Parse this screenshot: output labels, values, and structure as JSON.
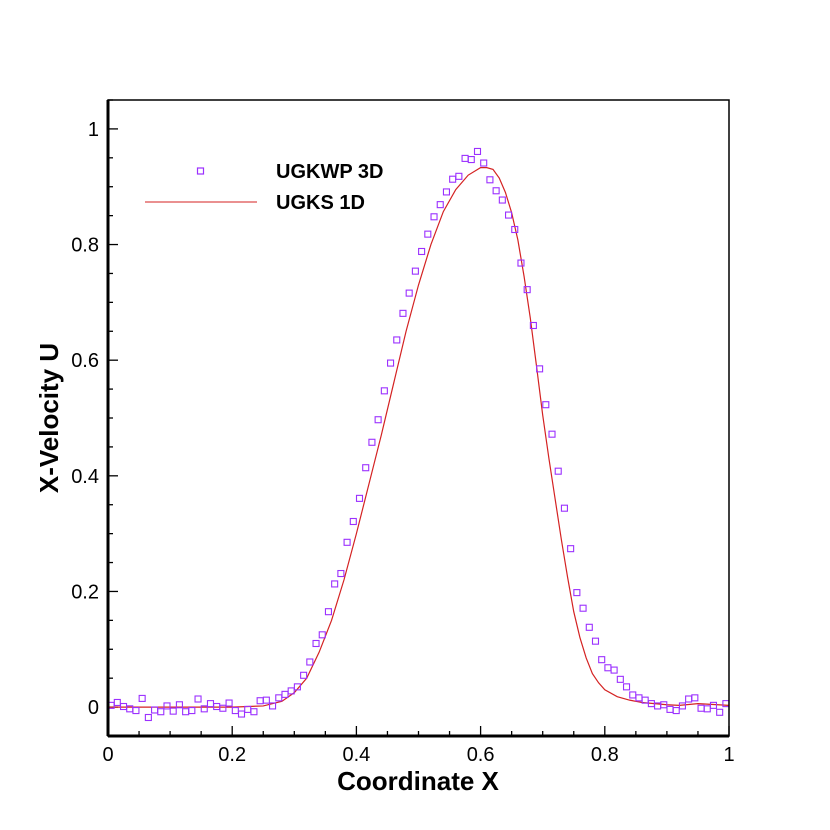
{
  "chart_data": {
    "type": "scatter",
    "xlabel": "Coordinate X",
    "ylabel": "X-Velocity U",
    "xlim": [
      0,
      1
    ],
    "ylim": [
      -0.05,
      1.05
    ],
    "xticks": [
      "0",
      "0.2",
      "0.4",
      "0.6",
      "0.8",
      "1"
    ],
    "yticks": [
      "0",
      "0.2",
      "0.4",
      "0.6",
      "0.8",
      "1"
    ],
    "grid": false,
    "legend": "top-left",
    "series": [
      {
        "name": "UGKWP 3D",
        "kind": "markers",
        "marker": "square",
        "color": "#9B30FF",
        "x": [
          0.005,
          0.015,
          0.025,
          0.035,
          0.045,
          0.055,
          0.065,
          0.075,
          0.085,
          0.095,
          0.105,
          0.115,
          0.125,
          0.135,
          0.145,
          0.155,
          0.165,
          0.175,
          0.185,
          0.195,
          0.205,
          0.215,
          0.225,
          0.235,
          0.245,
          0.255,
          0.265,
          0.275,
          0.285,
          0.295,
          0.305,
          0.315,
          0.325,
          0.335,
          0.345,
          0.355,
          0.365,
          0.375,
          0.385,
          0.395,
          0.405,
          0.415,
          0.425,
          0.435,
          0.445,
          0.455,
          0.465,
          0.475,
          0.485,
          0.495,
          0.505,
          0.515,
          0.525,
          0.535,
          0.545,
          0.555,
          0.565,
          0.575,
          0.585,
          0.595,
          0.605,
          0.615,
          0.625,
          0.635,
          0.645,
          0.655,
          0.665,
          0.675,
          0.685,
          0.695,
          0.705,
          0.715,
          0.725,
          0.735,
          0.745,
          0.755,
          0.765,
          0.775,
          0.785,
          0.795,
          0.805,
          0.815,
          0.825,
          0.835,
          0.845,
          0.855,
          0.865,
          0.875,
          0.885,
          0.895,
          0.905,
          0.915,
          0.925,
          0.935,
          0.945,
          0.955,
          0.965,
          0.975,
          0.985,
          0.995
        ],
        "y": [
          0.003,
          0.008,
          0.001,
          -0.003,
          -0.006,
          0.015,
          -0.018,
          -0.005,
          -0.008,
          0.002,
          -0.007,
          0.004,
          -0.008,
          -0.006,
          0.014,
          -0.003,
          0.006,
          0.001,
          -0.002,
          0.007,
          -0.006,
          -0.012,
          -0.004,
          -0.008,
          0.011,
          0.012,
          0.002,
          0.016,
          0.022,
          0.028,
          0.035,
          0.055,
          0.078,
          0.11,
          0.125,
          0.165,
          0.213,
          0.231,
          0.285,
          0.321,
          0.361,
          0.414,
          0.458,
          0.497,
          0.547,
          0.595,
          0.635,
          0.681,
          0.716,
          0.754,
          0.788,
          0.818,
          0.848,
          0.869,
          0.891,
          0.913,
          0.918,
          0.949,
          0.947,
          0.961,
          0.941,
          0.912,
          0.893,
          0.877,
          0.851,
          0.826,
          0.768,
          0.722,
          0.66,
          0.585,
          0.523,
          0.472,
          0.408,
          0.344,
          0.274,
          0.198,
          0.171,
          0.138,
          0.114,
          0.082,
          0.068,
          0.064,
          0.048,
          0.035,
          0.021,
          0.016,
          0.012,
          0.006,
          0.002,
          0.004,
          -0.004,
          -0.006,
          0.002,
          0.014,
          0.016,
          -0.002,
          -0.003,
          0.003,
          -0.009,
          0.006
        ]
      },
      {
        "name": "UGKS 1D",
        "kind": "line",
        "color": "#D42222",
        "x": [
          0.0,
          0.05,
          0.1,
          0.15,
          0.2,
          0.25,
          0.28,
          0.3,
          0.32,
          0.34,
          0.36,
          0.38,
          0.4,
          0.42,
          0.44,
          0.46,
          0.48,
          0.5,
          0.52,
          0.54,
          0.56,
          0.58,
          0.6,
          0.61,
          0.62,
          0.63,
          0.64,
          0.65,
          0.66,
          0.67,
          0.68,
          0.69,
          0.7,
          0.71,
          0.72,
          0.73,
          0.74,
          0.75,
          0.76,
          0.77,
          0.78,
          0.79,
          0.8,
          0.82,
          0.84,
          0.86,
          0.88,
          0.9,
          0.92,
          0.95,
          1.0
        ],
        "y": [
          0.0,
          0.0,
          0.0,
          0.0,
          0.0,
          0.002,
          0.01,
          0.025,
          0.05,
          0.095,
          0.15,
          0.22,
          0.3,
          0.385,
          0.47,
          0.56,
          0.65,
          0.73,
          0.8,
          0.857,
          0.895,
          0.92,
          0.933,
          0.933,
          0.93,
          0.915,
          0.89,
          0.855,
          0.808,
          0.745,
          0.673,
          0.59,
          0.505,
          0.43,
          0.36,
          0.29,
          0.225,
          0.165,
          0.12,
          0.085,
          0.058,
          0.042,
          0.03,
          0.018,
          0.012,
          0.008,
          0.006,
          0.004,
          0.003,
          0.006,
          0.003
        ]
      }
    ]
  }
}
